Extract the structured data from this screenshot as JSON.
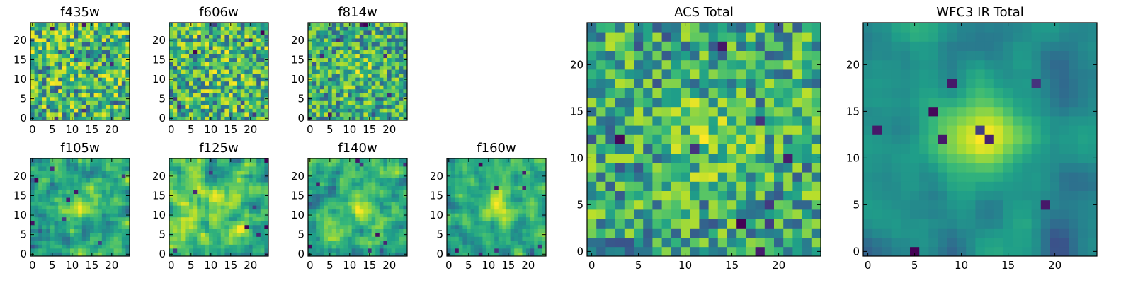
{
  "chart_data": [
    {
      "type": "heatmap",
      "title": "f435w",
      "size": 25,
      "seed": 11,
      "smooth": 0,
      "bias": 0,
      "xticks": [
        0,
        5,
        10,
        15,
        20
      ],
      "yticks": [
        0,
        5,
        10,
        15,
        20
      ],
      "colormap": "viridis"
    },
    {
      "type": "heatmap",
      "title": "f606w",
      "size": 25,
      "seed": 23,
      "smooth": 0,
      "bias": 0.1,
      "xticks": [
        0,
        5,
        10,
        15,
        20
      ],
      "yticks": [
        0,
        5,
        10,
        15,
        20
      ],
      "colormap": "viridis"
    },
    {
      "type": "heatmap",
      "title": "f814w",
      "size": 25,
      "seed": 37,
      "smooth": 0,
      "bias": 0.2,
      "xticks": [
        0,
        5,
        10,
        15,
        20
      ],
      "yticks": [
        0,
        5,
        10,
        15,
        20
      ],
      "colormap": "viridis"
    },
    {
      "type": "heatmap",
      "title": "f105w",
      "size": 25,
      "seed": 41,
      "smooth": 1,
      "bias": 0.3,
      "xticks": [
        0,
        5,
        10,
        15,
        20
      ],
      "yticks": [
        0,
        5,
        10,
        15,
        20
      ],
      "colormap": "viridis"
    },
    {
      "type": "heatmap",
      "title": "f125w",
      "size": 25,
      "seed": 53,
      "smooth": 1,
      "bias": 0.1,
      "xticks": [
        0,
        5,
        10,
        15,
        20
      ],
      "yticks": [
        0,
        5,
        10,
        15,
        20
      ],
      "colormap": "viridis"
    },
    {
      "type": "heatmap",
      "title": "f140w",
      "size": 25,
      "seed": 67,
      "smooth": 1,
      "bias": 0.2,
      "xticks": [
        0,
        5,
        10,
        15,
        20
      ],
      "yticks": [
        0,
        5,
        10,
        15,
        20
      ],
      "colormap": "viridis"
    },
    {
      "type": "heatmap",
      "title": "f160w",
      "size": 25,
      "seed": 79,
      "smooth": 1,
      "bias": 0.4,
      "xticks": [
        0,
        5,
        10,
        15,
        20
      ],
      "yticks": [
        0,
        5,
        10,
        15,
        20
      ],
      "colormap": "viridis"
    },
    {
      "type": "heatmap",
      "title": "ACS Total",
      "size": 25,
      "seed": 97,
      "smooth": 0,
      "bias": 0.3,
      "xticks": [
        0,
        5,
        10,
        15,
        20
      ],
      "yticks": [
        0,
        5,
        10,
        15,
        20
      ],
      "colormap": "viridis"
    },
    {
      "type": "heatmap",
      "title": "WFC3 IR Total",
      "size": 25,
      "seed": 131,
      "smooth": 2,
      "bias": 0.8,
      "xticks": [
        0,
        5,
        10,
        15,
        20
      ],
      "yticks": [
        0,
        5,
        10,
        15,
        20
      ],
      "colormap": "viridis"
    }
  ]
}
